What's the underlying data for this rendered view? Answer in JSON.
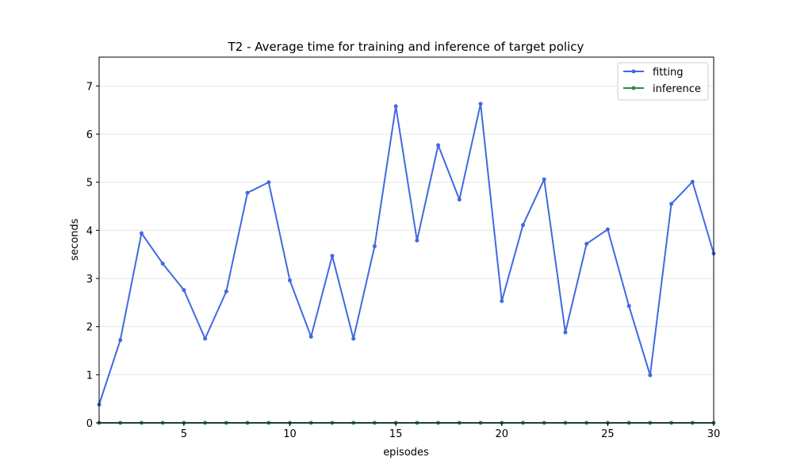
{
  "chart_data": {
    "type": "line",
    "title": "T2 - Average time for training and inference of target policy",
    "xlabel": "episodes",
    "ylabel": "seconds",
    "xlim": [
      1,
      30
    ],
    "ylim": [
      0,
      7.6
    ],
    "xticks": [
      5,
      10,
      15,
      20,
      25,
      30
    ],
    "yticks": [
      0,
      1,
      2,
      3,
      4,
      5,
      6,
      7
    ],
    "grid": "horizontal",
    "legend_position": "top-right",
    "x": [
      1,
      2,
      3,
      4,
      5,
      6,
      7,
      8,
      9,
      10,
      11,
      12,
      13,
      14,
      15,
      16,
      17,
      18,
      19,
      20,
      21,
      22,
      23,
      24,
      25,
      26,
      27,
      28,
      29,
      30
    ],
    "series": [
      {
        "name": "fitting",
        "color": "#4169e1",
        "values": [
          0.38,
          1.72,
          3.94,
          3.31,
          2.76,
          1.75,
          2.73,
          4.78,
          5.0,
          2.96,
          1.79,
          3.47,
          1.75,
          3.67,
          6.58,
          3.79,
          5.77,
          4.64,
          6.63,
          2.53,
          4.11,
          5.06,
          1.88,
          3.72,
          4.02,
          2.43,
          0.99,
          4.55,
          5.01,
          3.52
        ]
      },
      {
        "name": "inference",
        "color": "#2e8b57",
        "values": [
          0.0,
          0.0,
          0.0,
          0.0,
          0.0,
          0.0,
          0.0,
          0.0,
          0.0,
          0.0,
          0.0,
          0.0,
          0.0,
          0.0,
          0.0,
          0.0,
          0.0,
          0.0,
          0.0,
          0.0,
          0.0,
          0.0,
          0.0,
          0.0,
          0.0,
          0.0,
          0.0,
          0.0,
          0.0,
          0.0
        ]
      }
    ]
  }
}
